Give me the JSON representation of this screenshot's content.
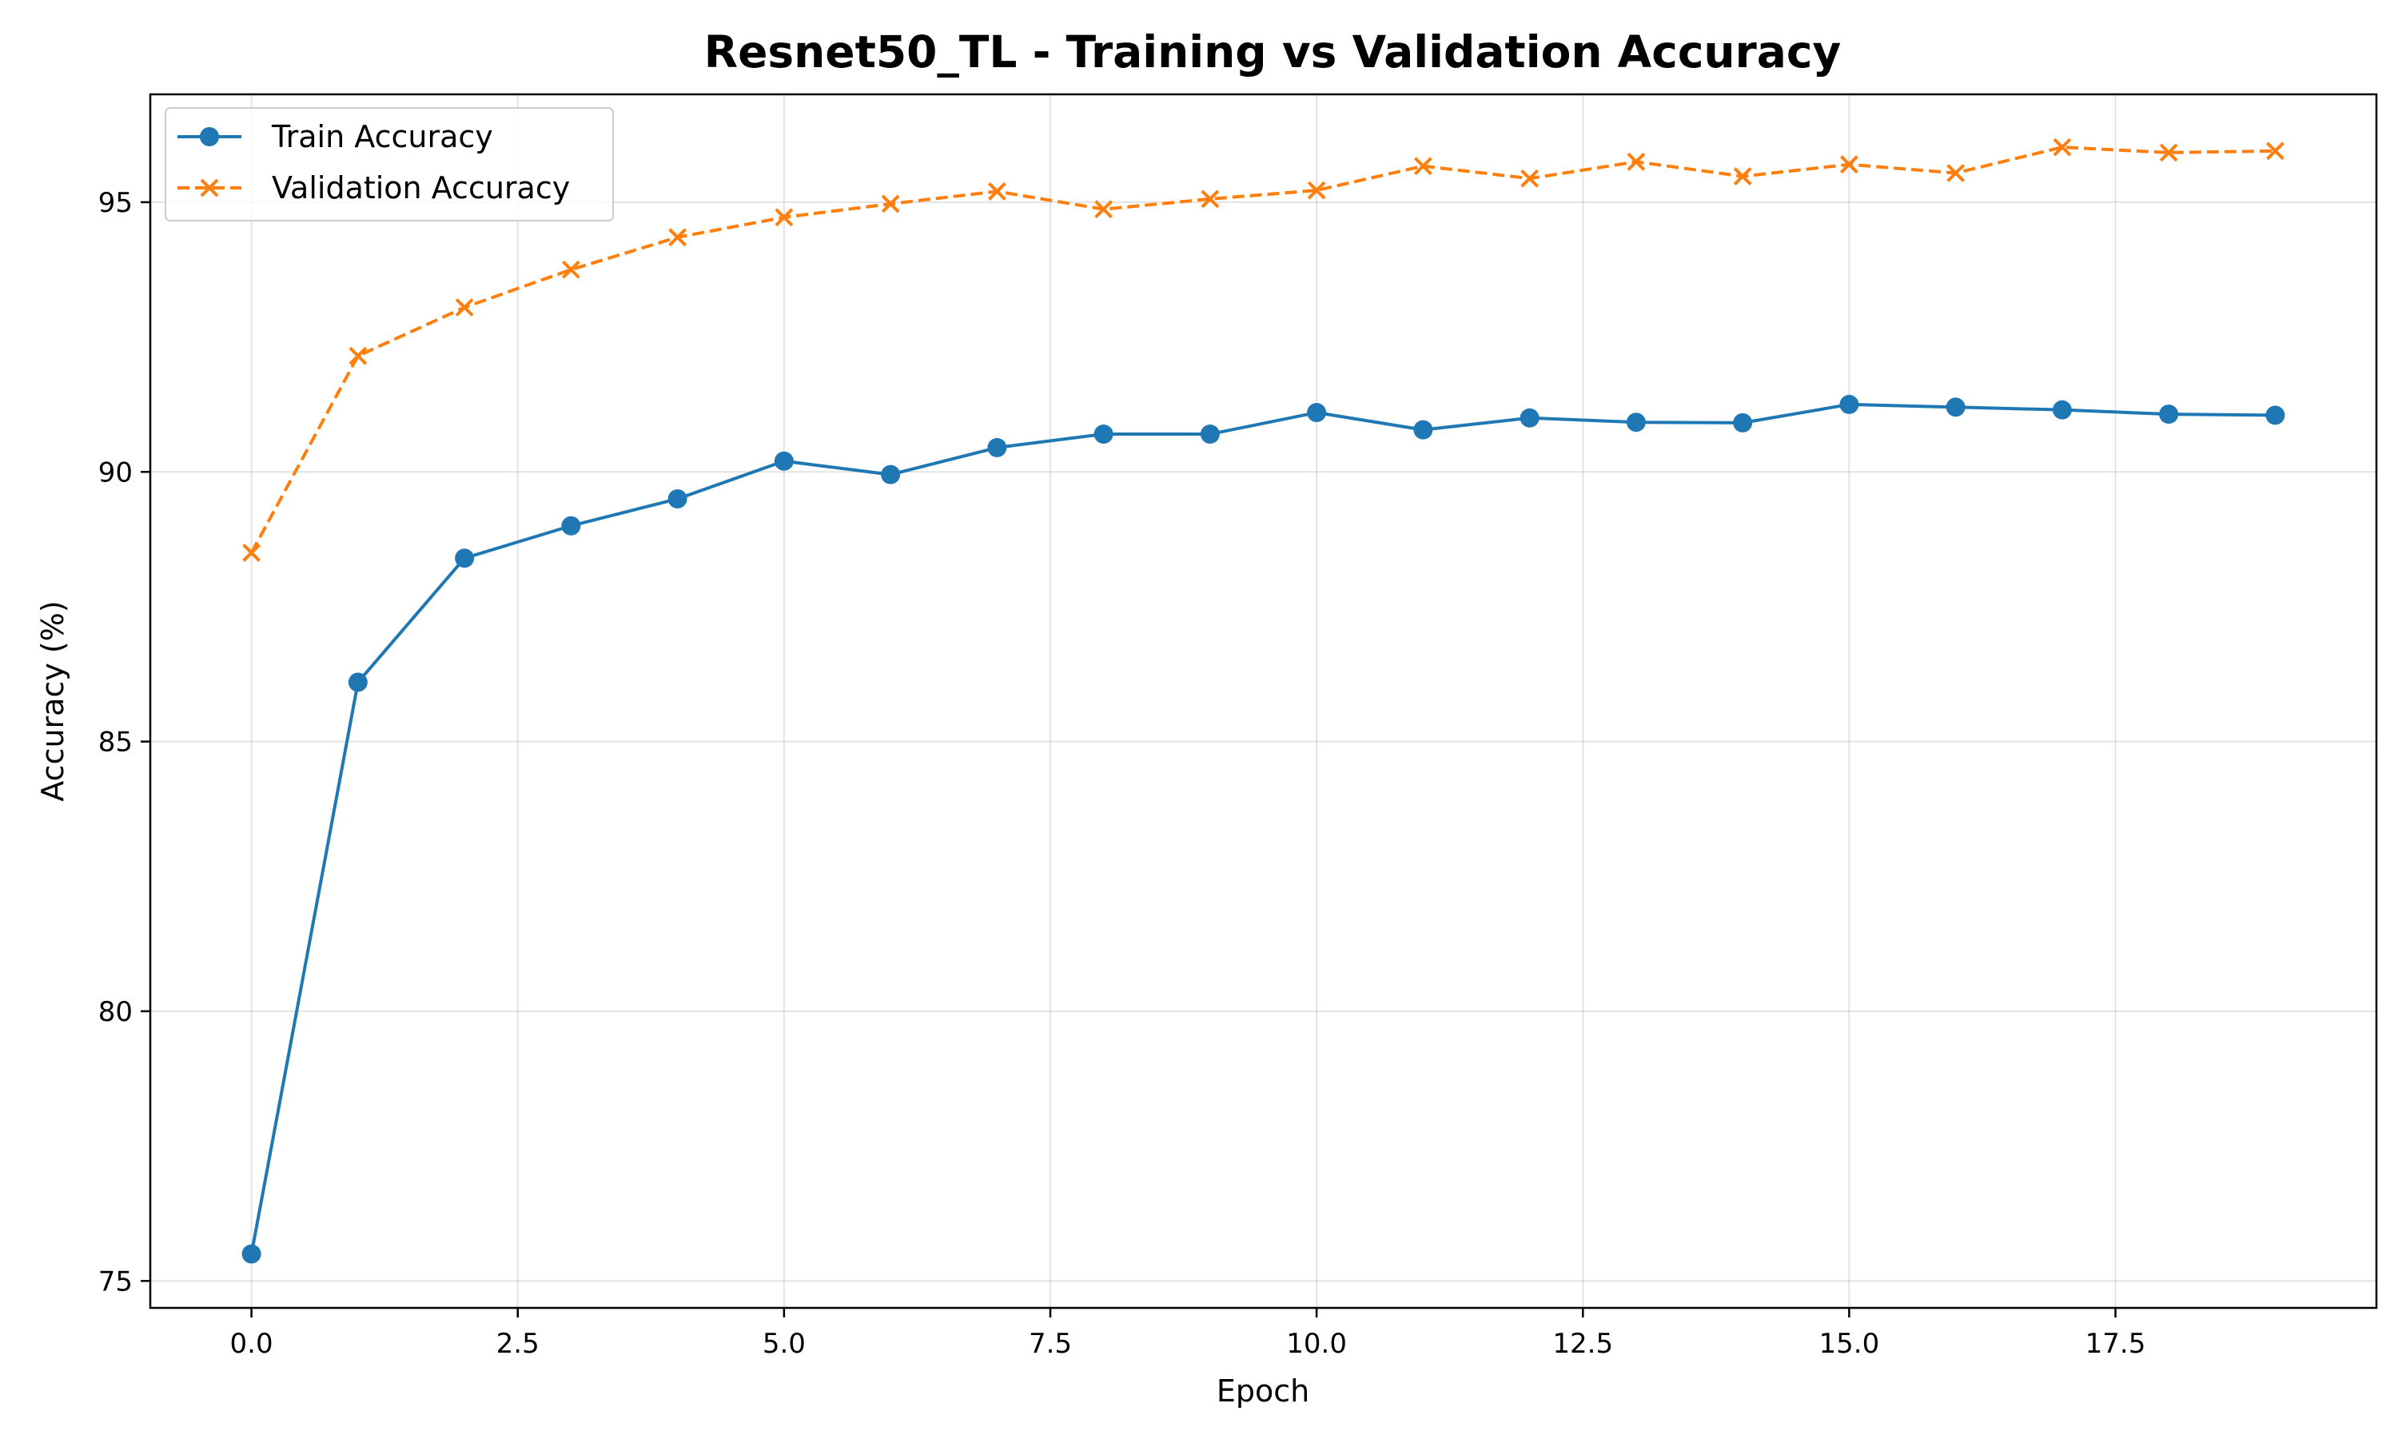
{
  "chart_data": {
    "type": "line",
    "title": "Resnet50_TL - Training vs Validation Accuracy",
    "xlabel": "Epoch",
    "ylabel": "Accuracy (%)",
    "xlim": [
      -0.95,
      19.95
    ],
    "ylim": [
      74.5,
      97.0
    ],
    "x_ticks": [
      0.0,
      2.5,
      5.0,
      7.5,
      10.0,
      12.5,
      15.0,
      17.5
    ],
    "x_tick_labels": [
      "0.0",
      "2.5",
      "5.0",
      "7.5",
      "10.0",
      "12.5",
      "15.0",
      "17.5"
    ],
    "y_ticks": [
      75,
      80,
      85,
      90,
      95
    ],
    "y_tick_labels": [
      "75",
      "80",
      "85",
      "90",
      "95"
    ],
    "grid": true,
    "legend_position": "top-left",
    "x": [
      0,
      1,
      2,
      3,
      4,
      5,
      6,
      7,
      8,
      9,
      10,
      11,
      12,
      13,
      14,
      15,
      16,
      17,
      18,
      19
    ],
    "series": [
      {
        "name": "Train Accuracy",
        "color": "#1f77b4",
        "marker": "circle",
        "line_style": "solid",
        "values": [
          75.5,
          86.1,
          88.4,
          89.0,
          89.5,
          90.2,
          89.95,
          90.45,
          90.7,
          90.7,
          91.1,
          90.78,
          91.0,
          90.92,
          90.91,
          91.25,
          91.2,
          91.15,
          91.07,
          91.05
        ]
      },
      {
        "name": "Validation Accuracy",
        "color": "#ff7f0e",
        "marker": "x",
        "line_style": "dashed",
        "values": [
          88.5,
          92.15,
          93.05,
          93.75,
          94.35,
          94.72,
          94.97,
          95.2,
          94.87,
          95.06,
          95.22,
          95.67,
          95.44,
          95.75,
          95.48,
          95.7,
          95.54,
          96.02,
          95.92,
          95.95
        ]
      }
    ]
  }
}
